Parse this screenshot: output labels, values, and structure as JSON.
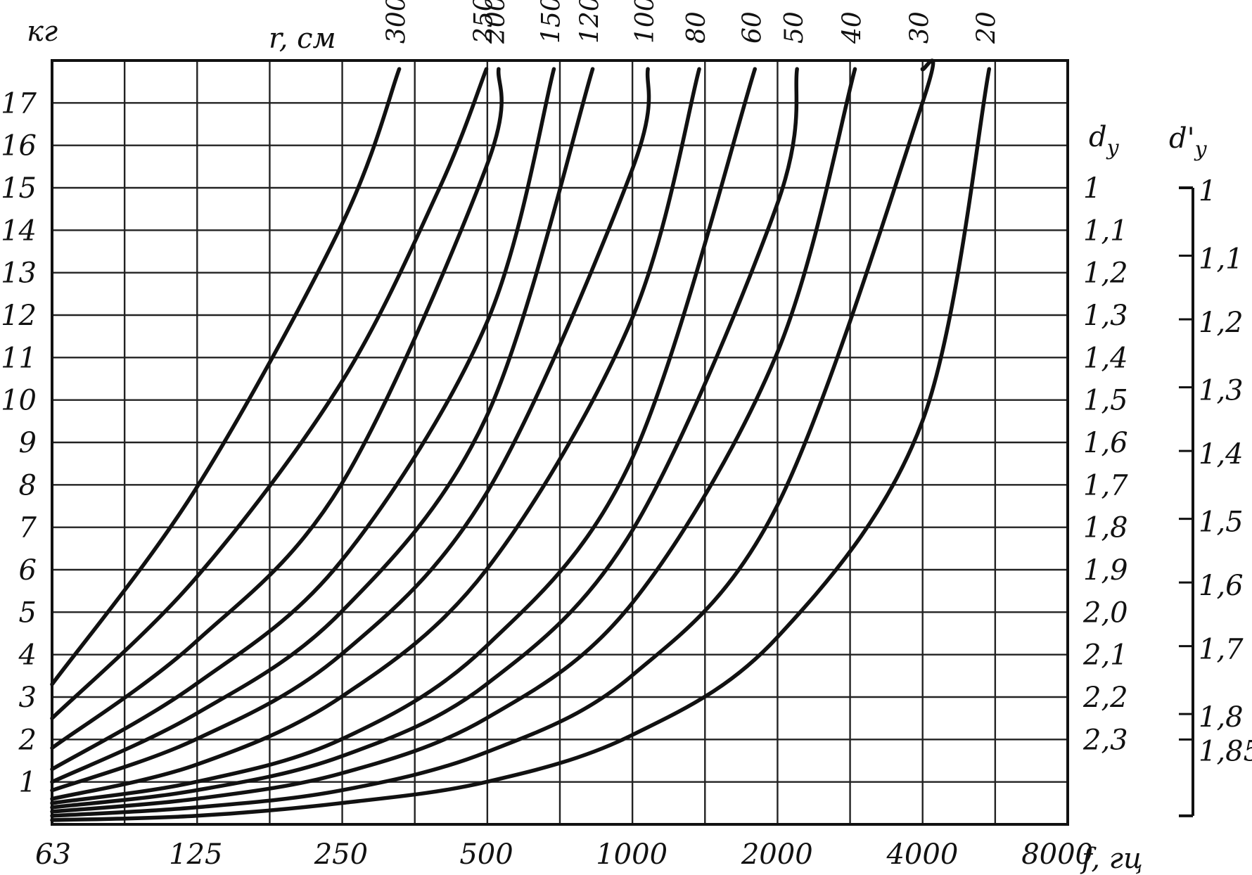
{
  "chart_data": {
    "type": "line",
    "xscale": "log",
    "xlabel": "f, гц",
    "ylabel": "кг",
    "curves_label": "r, см",
    "x_ticks": [
      63,
      125,
      250,
      500,
      1000,
      2000,
      4000,
      8000
    ],
    "x_tick_labels": [
      "63",
      "125",
      "250",
      "500",
      "1000",
      "2000",
      "4000",
      "8000"
    ],
    "xlim": [
      63,
      8000
    ],
    "y_ticks": [
      1,
      2,
      3,
      4,
      5,
      6,
      7,
      8,
      9,
      10,
      11,
      12,
      13,
      14,
      15,
      16,
      17
    ],
    "ylim": [
      0,
      18
    ],
    "grid": true,
    "series": [
      {
        "name": "300",
        "x": [
          63,
          125,
          250,
          330
        ],
        "y": [
          3.3,
          7.9,
          14.1,
          17.8
        ]
      },
      {
        "name": "250",
        "x": [
          63,
          125,
          250,
          500,
          400
        ],
        "y": [
          2.5,
          5.8,
          10.4,
          17.8,
          15.0
        ]
      },
      {
        "name": "200",
        "x": [
          63,
          125,
          250,
          500,
          530
        ],
        "y": [
          1.8,
          4.3,
          8.0,
          15.5,
          17.8
        ]
      },
      {
        "name": "150",
        "x": [
          63,
          125,
          250,
          500,
          690
        ],
        "y": [
          1.3,
          3.3,
          6.2,
          11.8,
          17.8
        ]
      },
      {
        "name": "120",
        "x": [
          63,
          125,
          250,
          500,
          830
        ],
        "y": [
          1.0,
          2.6,
          5.0,
          9.6,
          17.8
        ]
      },
      {
        "name": "100",
        "x": [
          63,
          125,
          250,
          500,
          1000,
          1080
        ],
        "y": [
          0.8,
          2.0,
          4.0,
          7.8,
          15.4,
          17.8
        ]
      },
      {
        "name": "80",
        "x": [
          63,
          125,
          250,
          500,
          1000,
          1380
        ],
        "y": [
          0.6,
          1.4,
          3.0,
          6.0,
          11.9,
          17.8
        ]
      },
      {
        "name": "60",
        "x": [
          63,
          125,
          250,
          500,
          1000,
          1800
        ],
        "y": [
          0.5,
          1.0,
          2.0,
          4.2,
          8.6,
          17.8
        ]
      },
      {
        "name": "50",
        "x": [
          63,
          125,
          250,
          500,
          1000,
          2000,
          2200
        ],
        "y": [
          0.4,
          0.8,
          1.6,
          3.3,
          6.9,
          14.6,
          17.8
        ]
      },
      {
        "name": "40",
        "x": [
          63,
          125,
          250,
          500,
          1000,
          2000,
          2900
        ],
        "y": [
          0.3,
          0.6,
          1.2,
          2.5,
          5.2,
          11.1,
          17.8
        ]
      },
      {
        "name": "30",
        "x": [
          63,
          125,
          250,
          500,
          1000,
          2000,
          4000,
          4000
        ],
        "y": [
          0.2,
          0.4,
          0.8,
          1.7,
          3.5,
          7.5,
          17.0,
          17.8
        ]
      },
      {
        "name": "20",
        "x": [
          63,
          125,
          250,
          500,
          1000,
          2000,
          4000,
          5500
        ],
        "y": [
          0.1,
          0.2,
          0.5,
          1.0,
          2.1,
          4.4,
          9.5,
          17.8
        ]
      }
    ],
    "right_scales": [
      {
        "title": "d",
        "title_subscript": "y",
        "ticks": [
          {
            "label": "1",
            "y": 15
          },
          {
            "label": "1,1",
            "y": 14
          },
          {
            "label": "1,2",
            "y": 13
          },
          {
            "label": "1,3",
            "y": 12
          },
          {
            "label": "1,4",
            "y": 11
          },
          {
            "label": "1,5",
            "y": 10
          },
          {
            "label": "1,6",
            "y": 9
          },
          {
            "label": "1,7",
            "y": 8
          },
          {
            "label": "1,8",
            "y": 7
          },
          {
            "label": "1,9",
            "y": 6
          },
          {
            "label": "2,0",
            "y": 5
          },
          {
            "label": "2,1",
            "y": 4
          },
          {
            "label": "2,2",
            "y": 3
          },
          {
            "label": "2,3",
            "y": 2
          }
        ]
      },
      {
        "title": "d'",
        "title_subscript": "y",
        "ticks": [
          {
            "label": "1",
            "y": 15
          },
          {
            "label": "1,1",
            "y": 13.4
          },
          {
            "label": "1,2",
            "y": 11.9
          },
          {
            "label": "1,3",
            "y": 10.3
          },
          {
            "label": "1,4",
            "y": 8.8
          },
          {
            "label": "1,5",
            "y": 7.2
          },
          {
            "label": "1,6",
            "y": 5.7
          },
          {
            "label": "1,7",
            "y": 4.2
          },
          {
            "label": "1,8",
            "y": 2.6
          },
          {
            "label": "1,85",
            "y": 2.0
          }
        ],
        "ylim": [
          0,
          15
        ]
      }
    ]
  }
}
